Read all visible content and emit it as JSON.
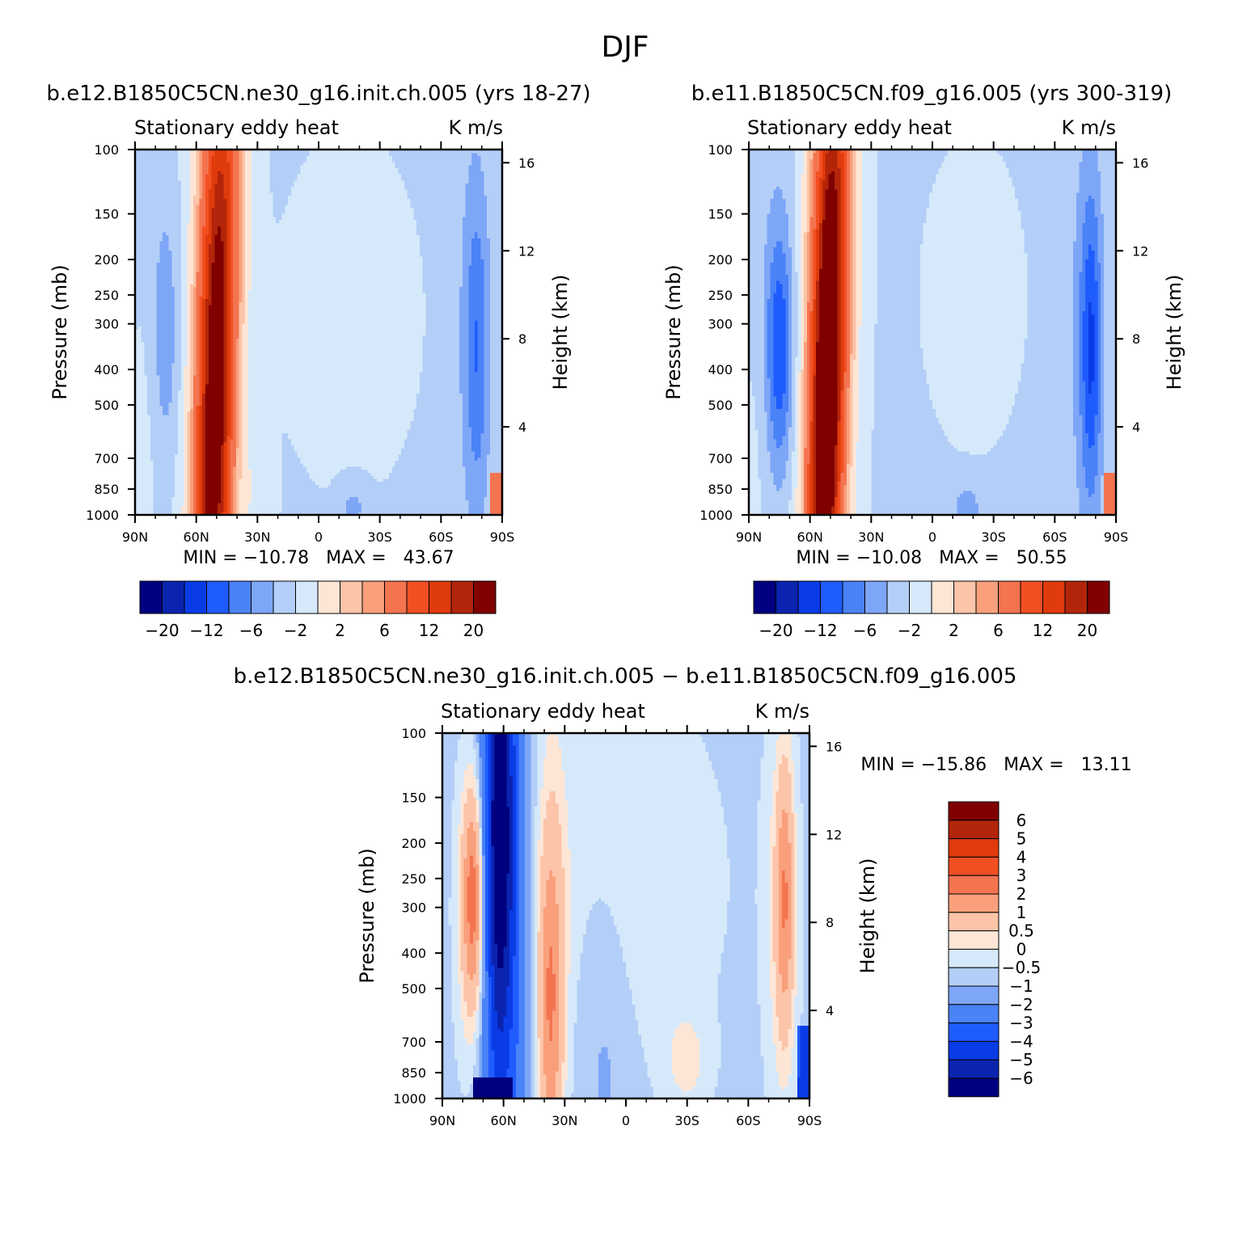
{
  "figure_title": "DJF",
  "panels": [
    {
      "case": "b.e12.B1850C5CN.ne30_g16.init.ch.005 (yrs 18-27)",
      "left_title": "Stationary eddy heat",
      "units": "K m/s",
      "stats": "MIN = −10.78   MAX =   43.67"
    },
    {
      "case": "b.e11.B1850C5CN.f09_g16.005 (yrs 300-319)",
      "left_title": "Stationary eddy heat",
      "units": "K m/s",
      "stats": "MIN = −10.08   MAX =   50.55"
    },
    {
      "case": "b.e12.B1850C5CN.ne30_g16.init.ch.005 − b.e11.B1850C5CN.f09_g16.005",
      "left_title": "Stationary eddy heat",
      "units": "K m/s",
      "stats": "MIN = −15.86   MAX =   13.11"
    }
  ],
  "axes": {
    "ylabel_left": "Pressure (mb)",
    "ylabel_right": "Height (km)",
    "pressure_ticks": [
      "100",
      "150",
      "200",
      "250",
      "300",
      "400",
      "500",
      "700",
      "850",
      "1000"
    ],
    "height_ticks": [
      "16",
      "12",
      "8",
      "4"
    ],
    "lat_ticks": [
      "90N",
      "60N",
      "30N",
      "0",
      "30S",
      "60S",
      "90S"
    ]
  },
  "colorbar_top": {
    "labels": [
      "−20",
      "−12",
      "−6",
      "−2",
      "2",
      "6",
      "12",
      "20"
    ],
    "colors": [
      "#000080",
      "#0a24b0",
      "#0a3ce6",
      "#1f5cff",
      "#4a82f7",
      "#7ea6f7",
      "#b3cff7",
      "#d6e9fb",
      "#fde6d6",
      "#fcc4a8",
      "#f99f7b",
      "#f47450",
      "#f25022",
      "#df3b0c",
      "#b3250a",
      "#800000"
    ]
  },
  "colorbar_diff": {
    "labels": [
      "6",
      "5",
      "4",
      "3",
      "2",
      "1",
      "0.5",
      "0",
      "−0.5",
      "−1",
      "−2",
      "−3",
      "−4",
      "−5",
      "−6"
    ],
    "colors": [
      "#800000",
      "#b3250a",
      "#df3b0c",
      "#f25022",
      "#f47450",
      "#f99f7b",
      "#fcc4a8",
      "#fde6d6",
      "#d6e9fb",
      "#b3cff7",
      "#7ea6f7",
      "#4a82f7",
      "#1f5cff",
      "#0a3ce6",
      "#0a24b0",
      "#000080"
    ]
  },
  "chart_data": [
    {
      "type": "heatmap",
      "title": "b.e12.B1850C5CN.ne30_g16.init.ch.005 (yrs 18-27)",
      "variable": "Stationary eddy heat",
      "units": "K m/s",
      "x": "latitude 90N to 90S",
      "y": "pressure 1000 to 100 mb (log)",
      "y_right": "height (km)",
      "ylim": [
        1000,
        100
      ],
      "min": -10.78,
      "max": 43.67,
      "features": [
        {
          "lat": 50,
          "p_range": [
            1000,
            100
          ],
          "value": 20,
          "sign": "positive"
        },
        {
          "lat": 75,
          "p_range": [
            700,
            180
          ],
          "value": -3,
          "sign": "negative"
        },
        {
          "lat": -75,
          "p_range": [
            1000,
            250
          ],
          "value": -5,
          "sign": "negative"
        }
      ]
    },
    {
      "type": "heatmap",
      "title": "b.e11.B1850C5CN.f09_g16.005 (yrs 300-319)",
      "variable": "Stationary eddy heat",
      "units": "K m/s",
      "x": "latitude 90N to 90S",
      "y": "pressure 1000 to 100 mb (log)",
      "y_right": "height (km)",
      "ylim": [
        1000,
        100
      ],
      "min": -10.08,
      "max": 50.55,
      "features": [
        {
          "lat": 50,
          "p_range": [
            1000,
            100
          ],
          "value": 25,
          "sign": "positive"
        },
        {
          "lat": 75,
          "p_range": [
            700,
            230
          ],
          "value": -6,
          "sign": "negative"
        },
        {
          "lat": -75,
          "p_range": [
            1000,
            250
          ],
          "value": -6,
          "sign": "negative"
        }
      ]
    },
    {
      "type": "heatmap",
      "title": "b.e12.B1850C5CN.ne30_g16.init.ch.005 − b.e11.B1850C5CN.f09_g16.005",
      "variable": "Stationary eddy heat",
      "units": "K m/s",
      "x": "latitude 90N to 90S",
      "y": "pressure 1000 to 100 mb (log)",
      "y_right": "height (km)",
      "ylim": [
        1000,
        100
      ],
      "min": -15.86,
      "max": 13.11,
      "features": [
        {
          "lat": 62,
          "p_range": [
            1000,
            100
          ],
          "value": -4,
          "sign": "negative"
        },
        {
          "lat": 75,
          "p_range": [
            600,
            280
          ],
          "value": 3,
          "sign": "positive"
        },
        {
          "lat": 37,
          "p_range": [
            1000,
            250
          ],
          "value": 2,
          "sign": "positive"
        },
        {
          "lat": -78,
          "p_range": [
            700,
            280
          ],
          "value": 2,
          "sign": "positive"
        }
      ]
    }
  ]
}
